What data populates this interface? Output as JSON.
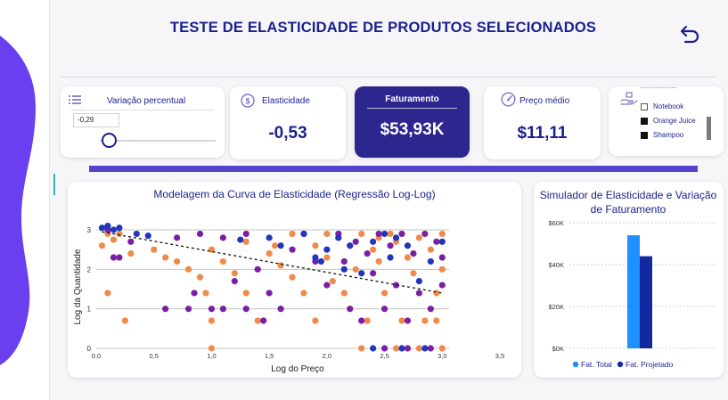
{
  "header": {
    "title": "TESTE DE ELASTICIDADE DE PRODUTOS SELECIONADOS",
    "back_icon": "undo-arrow-icon"
  },
  "slicer": {
    "label": "Variação percentual",
    "value": "-0,29"
  },
  "kpis": {
    "elasticidade_label": "Elasticidade",
    "elasticidade_value": "-0,53",
    "faturamento_label": "Faturamento",
    "faturamento_value": "$53,93K",
    "preco_label": "Preço médio",
    "preco_value": "$11,11"
  },
  "legend": {
    "items": [
      {
        "label": "Notebook",
        "color": "#ffffff"
      },
      {
        "label": "Orange Juice",
        "color": "#111111"
      },
      {
        "label": "Shampoo",
        "color": "#111111"
      }
    ]
  },
  "colors": {
    "navy": "#1a1f8c",
    "orange": "#f08a48",
    "purple": "#7b1fa2",
    "blue": "#2136b8",
    "light_blue": "#1e90ff",
    "dark_blue": "#1428a0",
    "accent_bar": "#5244cc",
    "card_dark": "#2c268e"
  },
  "chart_data": [
    {
      "type": "scatter",
      "title": "Modelagem da Curva de Elasticidade (Regressão Log-Log)",
      "xlabel": "Log do Preço",
      "ylabel": "Log da Quantidade",
      "xlim": [
        0,
        3.5
      ],
      "ylim": [
        0,
        3
      ],
      "x_ticks": [
        "0,0",
        "0,5",
        "1,0",
        "1,5",
        "2,0",
        "2,5",
        "3,0",
        "3,5"
      ],
      "y_ticks": [
        "0",
        "1",
        "2",
        "3"
      ],
      "trendline": {
        "x": [
          0.05,
          3.0
        ],
        "y": [
          2.95,
          1.4
        ]
      },
      "series": [
        {
          "name": "orange",
          "color": "#f08a48",
          "points": [
            [
              0.1,
              2.9
            ],
            [
              0.15,
              2.75
            ],
            [
              0.2,
              2.9
            ],
            [
              0.05,
              2.6
            ],
            [
              0.1,
              1.4
            ],
            [
              0.25,
              0.7
            ],
            [
              0.3,
              2.4
            ],
            [
              0.5,
              2.5
            ],
            [
              0.6,
              2.3
            ],
            [
              0.7,
              2.2
            ],
            [
              0.8,
              2.0
            ],
            [
              0.9,
              1.8
            ],
            [
              1.0,
              0.7
            ],
            [
              1.0,
              2.5
            ],
            [
              1.1,
              2.2
            ],
            [
              1.2,
              1.9
            ],
            [
              1.3,
              2.7
            ],
            [
              1.3,
              1.4
            ],
            [
              1.4,
              0.7
            ],
            [
              1.5,
              2.4
            ],
            [
              1.6,
              2.1
            ],
            [
              1.7,
              1.8
            ],
            [
              1.7,
              2.9
            ],
            [
              1.8,
              1.4
            ],
            [
              1.9,
              2.6
            ],
            [
              1.9,
              0.7
            ],
            [
              2.0,
              2.9
            ],
            [
              2.0,
              2.3
            ],
            [
              2.05,
              1.7
            ],
            [
              2.1,
              2.8
            ],
            [
              2.15,
              1.4
            ],
            [
              2.2,
              2.6
            ],
            [
              2.25,
              2.0
            ],
            [
              2.3,
              2.9
            ],
            [
              2.35,
              0.7
            ],
            [
              2.4,
              2.5
            ],
            [
              2.45,
              2.2
            ],
            [
              2.5,
              1.4
            ],
            [
              2.55,
              2.9
            ],
            [
              2.6,
              2.7
            ],
            [
              2.65,
              0.7
            ],
            [
              2.7,
              2.3
            ],
            [
              2.75,
              1.9
            ],
            [
              2.8,
              2.8
            ],
            [
              2.85,
              0.7
            ],
            [
              2.9,
              2.5
            ],
            [
              2.95,
              1.4
            ],
            [
              3.0,
              2.9
            ],
            [
              3.0,
              2.0
            ],
            [
              2.95,
              0.7
            ],
            [
              1.0,
              0.0
            ],
            [
              2.3,
              0.0
            ],
            [
              2.6,
              0.0
            ],
            [
              2.8,
              0.0
            ],
            [
              3.0,
              0.0
            ],
            [
              0.95,
              1.4
            ],
            [
              2.45,
              2.8
            ],
            [
              1.55,
              2.6
            ]
          ]
        },
        {
          "name": "purple",
          "color": "#7b1fa2",
          "points": [
            [
              0.1,
              3.0
            ],
            [
              0.15,
              2.3
            ],
            [
              0.2,
              2.3
            ],
            [
              0.3,
              2.7
            ],
            [
              0.7,
              2.8
            ],
            [
              0.9,
              2.9
            ],
            [
              0.85,
              1.4
            ],
            [
              0.8,
              1.0
            ],
            [
              1.0,
              1.0
            ],
            [
              1.1,
              2.8
            ],
            [
              1.2,
              1.7
            ],
            [
              1.3,
              2.9
            ],
            [
              1.4,
              2.0
            ],
            [
              1.5,
              1.4
            ],
            [
              1.6,
              1.0
            ],
            [
              1.7,
              2.5
            ],
            [
              1.8,
              2.9
            ],
            [
              1.9,
              2.2
            ],
            [
              2.0,
              1.6
            ],
            [
              2.1,
              2.9
            ],
            [
              2.2,
              1.0
            ],
            [
              2.25,
              2.7
            ],
            [
              2.3,
              0.7
            ],
            [
              2.35,
              2.4
            ],
            [
              2.4,
              1.9
            ],
            [
              2.45,
              2.9
            ],
            [
              2.5,
              1.0
            ],
            [
              2.55,
              2.6
            ],
            [
              2.6,
              1.6
            ],
            [
              2.65,
              2.9
            ],
            [
              2.7,
              0.7
            ],
            [
              2.75,
              2.4
            ],
            [
              2.8,
              1.4
            ],
            [
              2.85,
              2.9
            ],
            [
              2.9,
              1.0
            ],
            [
              2.95,
              2.7
            ],
            [
              3.0,
              2.3
            ],
            [
              3.0,
              1.6
            ],
            [
              1.1,
              1.0
            ],
            [
              0.6,
              1.0
            ],
            [
              1.3,
              1.0
            ],
            [
              1.45,
              0.7
            ],
            [
              2.5,
              0.0
            ],
            [
              2.7,
              0.0
            ],
            [
              2.9,
              0.0
            ],
            [
              2.15,
              2.2
            ]
          ]
        },
        {
          "name": "blue",
          "color": "#2136b8",
          "points": [
            [
              0.05,
              3.05
            ],
            [
              0.1,
              3.1
            ],
            [
              0.15,
              3.0
            ],
            [
              0.2,
              3.05
            ],
            [
              0.35,
              2.9
            ],
            [
              0.45,
              2.85
            ],
            [
              1.25,
              2.75
            ],
            [
              1.5,
              2.8
            ],
            [
              1.6,
              2.6
            ],
            [
              1.8,
              2.9
            ],
            [
              1.9,
              2.3
            ],
            [
              2.0,
              2.5
            ],
            [
              2.1,
              2.8
            ],
            [
              2.2,
              2.6
            ],
            [
              2.3,
              1.9
            ],
            [
              2.4,
              2.7
            ],
            [
              2.5,
              2.9
            ],
            [
              2.55,
              2.3
            ],
            [
              2.6,
              2.8
            ],
            [
              2.7,
              2.6
            ],
            [
              2.8,
              1.7
            ],
            [
              2.9,
              2.2
            ],
            [
              3.0,
              2.7
            ],
            [
              2.4,
              0.0
            ],
            [
              2.65,
              0.0
            ],
            [
              2.85,
              0.0
            ],
            [
              1.95,
              2.2
            ],
            [
              2.15,
              2.0
            ]
          ]
        }
      ]
    },
    {
      "type": "bar",
      "title": "Simulador de Elasticidade e Variação de Faturamento",
      "categories": [
        ""
      ],
      "series": [
        {
          "name": "Fat. Total",
          "color": "#1e90ff",
          "values": [
            54
          ]
        },
        {
          "name": "Fat. Projetado",
          "color": "#1428a0",
          "values": [
            44
          ]
        }
      ],
      "ylim": [
        0,
        60
      ],
      "y_ticks": [
        "$0K",
        "$20K",
        "$40K",
        "$60K"
      ],
      "unit": "K"
    }
  ]
}
